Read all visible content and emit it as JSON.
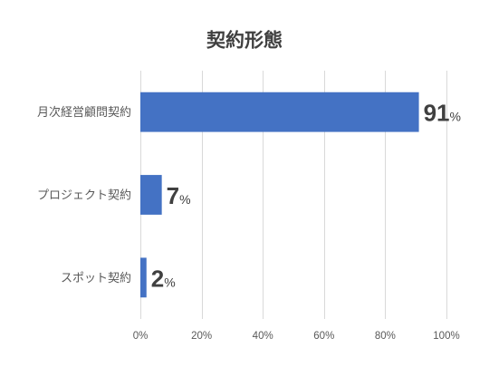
{
  "chart_data": {
    "type": "bar",
    "orientation": "horizontal",
    "title": "契約形態",
    "categories": [
      "月次経営顧問契約",
      "プロジェクト契約",
      "スポット契約"
    ],
    "values": [
      91,
      7,
      2
    ],
    "value_suffix": "%",
    "xlim": [
      0,
      100
    ],
    "x_ticks": [
      0,
      20,
      40,
      60,
      80,
      100
    ],
    "x_tick_labels": [
      "0%",
      "20%",
      "40%",
      "60%",
      "80%",
      "100%"
    ],
    "grid": true,
    "legend": "none",
    "colors": {
      "bar": "#4472C4",
      "grid": "#D9D9D9",
      "axis_text": "#595959",
      "title": "#404040",
      "data_label": "#404040"
    }
  }
}
